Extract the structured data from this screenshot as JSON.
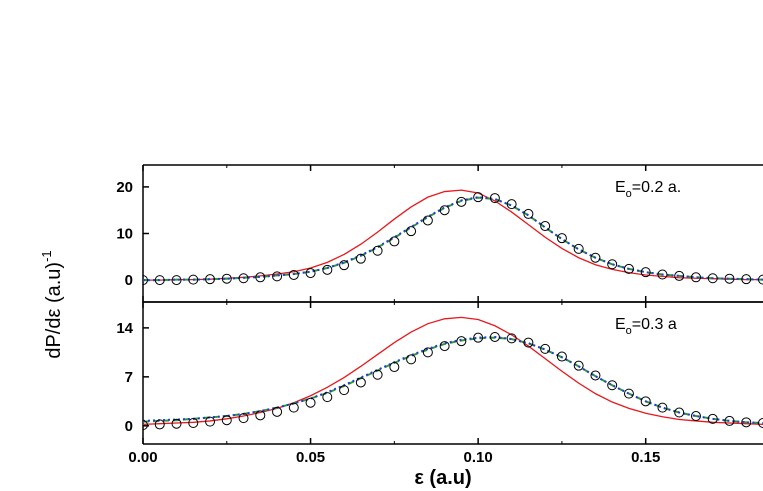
{
  "chart_data": [
    {
      "type": "line",
      "ylabel": "dP/dε (a.u)",
      "ylabel_sup": "-1",
      "annotation": {
        "main": "E",
        "sub": "o",
        "rest": "=0.2 a."
      },
      "xlim": [
        0,
        0.185
      ],
      "ylim": [
        -4.7,
        24.7
      ],
      "yticks": [
        0,
        10,
        20
      ],
      "x": [
        0,
        0.005,
        0.01,
        0.015,
        0.02,
        0.025,
        0.03,
        0.035,
        0.04,
        0.045,
        0.05,
        0.055,
        0.06,
        0.065,
        0.07,
        0.075,
        0.08,
        0.085,
        0.09,
        0.095,
        0.1,
        0.105,
        0.11,
        0.115,
        0.12,
        0.125,
        0.13,
        0.135,
        0.14,
        0.145,
        0.15,
        0.155,
        0.16,
        0.165,
        0.17,
        0.175,
        0.18,
        0.185
      ],
      "series": [
        {
          "style": "solid",
          "color": "#e8181c",
          "values": [
            0,
            0,
            0.1,
            0.1,
            0.2,
            0.4,
            0.6,
            0.9,
            1.3,
            1.8,
            2.6,
            3.8,
            5.5,
            7.7,
            10.3,
            13.1,
            15.7,
            17.8,
            19,
            19.3,
            18.7,
            17,
            14.6,
            11.9,
            9.2,
            6.8,
            4.8,
            3.3,
            2.3,
            1.6,
            1.1,
            0.8,
            0.5,
            0.4,
            0.3,
            0.2,
            0.1,
            0.1
          ]
        },
        {
          "style": "dashed",
          "color": "#2e9a2e",
          "values": [
            0,
            0,
            0.1,
            0.1,
            0.2,
            0.3,
            0.5,
            0.7,
            1,
            1.3,
            1.8,
            2.6,
            3.7,
            5.2,
            7,
            9.1,
            11.3,
            13.5,
            15.5,
            17,
            17.7,
            17.4,
            16,
            13.9,
            11.3,
            8.8,
            6.6,
            4.8,
            3.4,
            2.4,
            1.7,
            1.2,
            0.9,
            0.6,
            0.4,
            0.3,
            0.2,
            0.1
          ]
        },
        {
          "style": "dotted",
          "color": "#1f3fd6",
          "values": [
            0,
            0,
            0.1,
            0.1,
            0.2,
            0.3,
            0.5,
            0.7,
            1,
            1.3,
            1.8,
            2.6,
            3.8,
            5.3,
            7.1,
            9.2,
            11.4,
            13.6,
            15.6,
            17.1,
            17.8,
            17.4,
            16,
            13.9,
            11.3,
            8.8,
            6.6,
            4.8,
            3.4,
            2.4,
            1.7,
            1.2,
            0.9,
            0.6,
            0.4,
            0.3,
            0.2,
            0.1
          ]
        },
        {
          "style": "circle",
          "color": "#000000",
          "values": [
            0,
            0,
            0,
            0.1,
            0.2,
            0.3,
            0.4,
            0.6,
            0.8,
            1.1,
            1.5,
            2.2,
            3.2,
            4.6,
            6.3,
            8.3,
            10.5,
            12.8,
            15,
            16.8,
            17.8,
            17.6,
            16.3,
            14.2,
            11.6,
            9,
            6.7,
            4.8,
            3.4,
            2.4,
            1.7,
            1.2,
            0.9,
            0.6,
            0.4,
            0.3,
            0.2,
            0.1
          ]
        }
      ]
    },
    {
      "type": "line",
      "xlabel": "ε (a.u)",
      "annotation": {
        "main": "E",
        "sub": "o",
        "rest": "=0.3 a"
      },
      "xlim": [
        0,
        0.185
      ],
      "ylim": [
        -2.6,
        17.7
      ],
      "yticks": [
        0,
        7,
        14
      ],
      "xticks": [
        {
          "value": 0,
          "label": "0.00"
        },
        0.05,
        {
          "value": 0.1,
          "label": "0.10"
        },
        0.15
      ],
      "x": [
        0,
        0.005,
        0.01,
        0.015,
        0.02,
        0.025,
        0.03,
        0.035,
        0.04,
        0.045,
        0.05,
        0.055,
        0.06,
        0.065,
        0.07,
        0.075,
        0.08,
        0.085,
        0.09,
        0.095,
        0.1,
        0.105,
        0.11,
        0.115,
        0.12,
        0.125,
        0.13,
        0.135,
        0.14,
        0.145,
        0.15,
        0.155,
        0.16,
        0.165,
        0.17,
        0.175,
        0.18,
        0.185
      ],
      "series": [
        {
          "style": "solid",
          "color": "#e8181c",
          "values": [
            0.2,
            0.3,
            0.4,
            0.5,
            0.7,
            1,
            1.4,
            1.9,
            2.5,
            3.3,
            4.3,
            5.5,
            6.9,
            8.5,
            10.2,
            11.9,
            13.4,
            14.6,
            15.3,
            15.5,
            15.2,
            14.3,
            13,
            11.4,
            9.6,
            7.8,
            6.1,
            4.6,
            3.4,
            2.5,
            1.8,
            1.3,
            0.9,
            0.7,
            0.5,
            0.4,
            0.3,
            0.2
          ]
        },
        {
          "style": "dashed",
          "color": "#2e9a2e",
          "values": [
            0.6,
            0.7,
            0.8,
            1,
            1.2,
            1.4,
            1.7,
            2.1,
            2.6,
            3.2,
            3.9,
            4.7,
            5.7,
            6.8,
            7.9,
            9,
            10,
            10.9,
            11.7,
            12.2,
            12.5,
            12.6,
            12.4,
            11.8,
            10.9,
            9.8,
            8.5,
            7.1,
            5.8,
            4.6,
            3.5,
            2.6,
            1.9,
            1.4,
            1,
            0.7,
            0.5,
            0.4
          ]
        },
        {
          "style": "dotted",
          "color": "#1f3fd6",
          "values": [
            0.7,
            0.8,
            0.9,
            1,
            1.2,
            1.4,
            1.7,
            2.1,
            2.6,
            3.2,
            3.9,
            4.8,
            5.8,
            6.9,
            8,
            9.1,
            10.1,
            11,
            11.8,
            12.3,
            12.6,
            12.7,
            12.4,
            11.8,
            10.9,
            9.8,
            8.5,
            7.1,
            5.8,
            4.6,
            3.5,
            2.6,
            1.9,
            1.4,
            1,
            0.7,
            0.5,
            0.4
          ]
        },
        {
          "style": "circle",
          "color": "#000000",
          "values": [
            0.1,
            0.2,
            0.3,
            0.4,
            0.6,
            0.8,
            1.1,
            1.5,
            2,
            2.6,
            3.3,
            4.1,
            5.1,
            6.2,
            7.3,
            8.4,
            9.5,
            10.5,
            11.4,
            12.1,
            12.6,
            12.7,
            12.5,
            11.9,
            11,
            9.9,
            8.6,
            7.2,
            5.8,
            4.6,
            3.5,
            2.6,
            1.9,
            1.4,
            1,
            0.7,
            0.5,
            0.4
          ]
        }
      ]
    }
  ]
}
